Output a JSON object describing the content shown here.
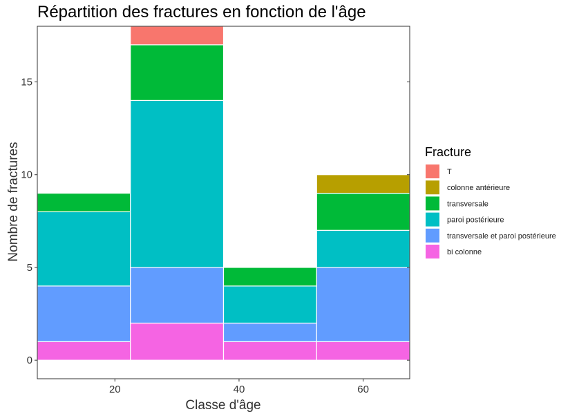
{
  "chart_data": {
    "type": "bar",
    "stacked": true,
    "title": "Répartition des fractures en fonction de l'âge",
    "xlabel": "Classe d'âge",
    "ylabel": "Nombre de fractures",
    "x": [
      15,
      30,
      45,
      60
    ],
    "bin_width": 15,
    "xlim": [
      7.5,
      67.5
    ],
    "xticks": [
      20,
      40,
      60
    ],
    "ylim": [
      -1,
      18
    ],
    "yticks": [
      0,
      5,
      10,
      15
    ],
    "grid": false,
    "legend": {
      "title": "Fracture",
      "position": "right"
    },
    "series": [
      {
        "name": "T",
        "color": "#F8766D",
        "values": [
          0,
          1,
          0,
          0
        ]
      },
      {
        "name": "colonne antérieure",
        "color": "#B79F00",
        "values": [
          0,
          0,
          0,
          1
        ]
      },
      {
        "name": "transversale",
        "color": "#00BA38",
        "values": [
          1,
          3,
          1,
          2
        ]
      },
      {
        "name": "paroi postérieure",
        "color": "#00BFC4",
        "values": [
          4,
          9,
          2,
          2
        ]
      },
      {
        "name": "transversale et paroi postérieure",
        "color": "#619CFF",
        "values": [
          3,
          3,
          1,
          4
        ]
      },
      {
        "name": "bi colonne",
        "color": "#F564E3",
        "values": [
          1,
          2,
          1,
          1
        ]
      }
    ]
  }
}
